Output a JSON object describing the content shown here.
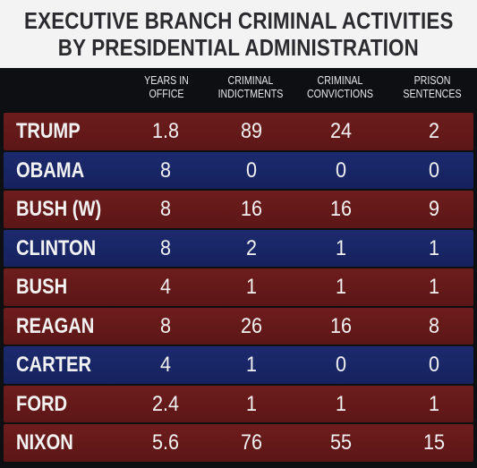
{
  "title": {
    "line1": "EXECUTIVE BRANCH CRIMINAL ACTIVITIES",
    "line2": "BY PRESIDENTIAL ADMINISTRATION"
  },
  "columns": [
    {
      "line1": "YEARS IN",
      "line2": "OFFICE"
    },
    {
      "line1": "CRIMINAL",
      "line2": "INDICTMENTS"
    },
    {
      "line1": "CRIMINAL",
      "line2": "CONVICTIONS"
    },
    {
      "line1": "PRISON",
      "line2": "SENTENCES"
    }
  ],
  "colors": {
    "red_row": "#6e1d1d",
    "blue_row": "#1c2a6e",
    "title_bg": "#f3f3f3",
    "background": "#0d0f12"
  },
  "rows": [
    {
      "name": "TRUMP",
      "tint": "red",
      "years": "1.8",
      "indictments": "89",
      "convictions": "24",
      "sentences": "2"
    },
    {
      "name": "OBAMA",
      "tint": "blue",
      "years": "8",
      "indictments": "0",
      "convictions": "0",
      "sentences": "0"
    },
    {
      "name": "BUSH (W)",
      "tint": "red",
      "years": "8",
      "indictments": "16",
      "convictions": "16",
      "sentences": "9"
    },
    {
      "name": "CLINTON",
      "tint": "blue",
      "years": "8",
      "indictments": "2",
      "convictions": "1",
      "sentences": "1"
    },
    {
      "name": "BUSH",
      "tint": "red",
      "years": "4",
      "indictments": "1",
      "convictions": "1",
      "sentences": "1"
    },
    {
      "name": "REAGAN",
      "tint": "red",
      "years": "8",
      "indictments": "26",
      "convictions": "16",
      "sentences": "8"
    },
    {
      "name": "CARTER",
      "tint": "blue",
      "years": "4",
      "indictments": "1",
      "convictions": "0",
      "sentences": "0"
    },
    {
      "name": "FORD",
      "tint": "red",
      "years": "2.4",
      "indictments": "1",
      "convictions": "1",
      "sentences": "1"
    },
    {
      "name": "NIXON",
      "tint": "red",
      "years": "5.6",
      "indictments": "76",
      "convictions": "55",
      "sentences": "15"
    }
  ],
  "chart_data": {
    "type": "table",
    "title": "EXECUTIVE BRANCH CRIMINAL ACTIVITIES BY PRESIDENTIAL ADMINISTRATION",
    "columns": [
      "YEARS IN OFFICE",
      "CRIMINAL INDICTMENTS",
      "CRIMINAL CONVICTIONS",
      "PRISON SENTENCES"
    ],
    "categories": [
      "TRUMP",
      "OBAMA",
      "BUSH (W)",
      "CLINTON",
      "BUSH",
      "REAGAN",
      "CARTER",
      "FORD",
      "NIXON"
    ],
    "series": [
      {
        "name": "YEARS IN OFFICE",
        "values": [
          1.8,
          8,
          8,
          8,
          4,
          8,
          4,
          2.4,
          5.6
        ]
      },
      {
        "name": "CRIMINAL INDICTMENTS",
        "values": [
          89,
          0,
          16,
          2,
          1,
          26,
          1,
          1,
          76
        ]
      },
      {
        "name": "CRIMINAL CONVICTIONS",
        "values": [
          24,
          0,
          16,
          1,
          1,
          16,
          0,
          1,
          55
        ]
      },
      {
        "name": "PRISON SENTENCES",
        "values": [
          2,
          0,
          9,
          1,
          1,
          8,
          0,
          1,
          15
        ]
      }
    ]
  }
}
